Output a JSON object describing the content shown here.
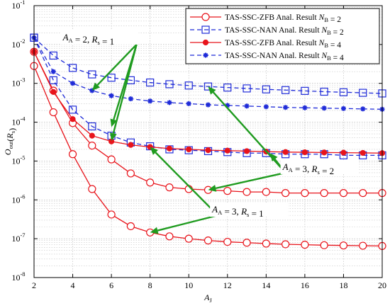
{
  "chart_data": {
    "type": "line",
    "xlabel": "A_J",
    "ylabel": "O_out(R_s)",
    "xlim": [
      2,
      20
    ],
    "ylim": [
      1e-08,
      0.1
    ],
    "yscale": "log",
    "grid": true,
    "legend_position": "top-right",
    "x_ticks": [
      "2",
      "4",
      "6",
      "8",
      "10",
      "12",
      "14",
      "16",
      "18",
      "20"
    ],
    "y_ticks": [
      {
        "base": "10",
        "exp": "-8",
        "value": 1e-08
      },
      {
        "base": "10",
        "exp": "-7",
        "value": 1e-07
      },
      {
        "base": "10",
        "exp": "-6",
        "value": 1e-06
      },
      {
        "base": "10",
        "exp": "-5",
        "value": 1e-05
      },
      {
        "base": "10",
        "exp": "-4",
        "value": 0.0001
      },
      {
        "base": "10",
        "exp": "-3",
        "value": 0.001
      },
      {
        "base": "10",
        "exp": "-2",
        "value": 0.01
      },
      {
        "base": "10",
        "exp": "-1",
        "value": 0.1
      }
    ],
    "legend": [
      {
        "label": "TAS-SSC-ZFB Anal. Result N_B = 2",
        "color": "#e8141b",
        "dash": "solid",
        "marker": "circle-open"
      },
      {
        "label": "TAS-SSC-NAN Anal. Result N_B = 2",
        "color": "#1f2bd8",
        "dash": "dashed",
        "marker": "square-open"
      },
      {
        "label": "TAS-SSC-ZFB Anal. Result N_B = 4",
        "color": "#e8141b",
        "dash": "solid",
        "marker": "dot-filled"
      },
      {
        "label": "TAS-SSC-NAN Anal. Result N_B = 4",
        "color": "#1f2bd8",
        "dash": "dashed",
        "marker": "star-filled"
      }
    ],
    "series": [
      {
        "legend": 0,
        "x": [
          2,
          3,
          4,
          5,
          6,
          7,
          8,
          9,
          10,
          11,
          12,
          13,
          14,
          15,
          16,
          17,
          18,
          19,
          20
        ],
        "values": [
          0.0028,
          0.00018,
          1.5e-05,
          1.9e-06,
          4.2e-07,
          2.1e-07,
          1.45e-07,
          1.15e-07,
          1e-07,
          9e-08,
          8.3e-08,
          7.9e-08,
          7.5e-08,
          7.2e-08,
          7e-08,
          6.8e-08,
          6.7e-08,
          6.6e-08,
          6.5e-08
        ]
      },
      {
        "legend": 0,
        "x": [
          2,
          3,
          4,
          5,
          6,
          7,
          8,
          9,
          10,
          11,
          12,
          13,
          14,
          15,
          16,
          17,
          18,
          19,
          20
        ],
        "values": [
          0.0065,
          0.00065,
          9.5e-05,
          2.5e-05,
          1.1e-05,
          4.8e-06,
          2.8e-06,
          2.1e-06,
          1.9e-06,
          1.8e-06,
          1.7e-06,
          1.6e-06,
          1.6e-06,
          1.5e-06,
          1.5e-06,
          1.5e-06,
          1.5e-06,
          1.5e-06,
          1.5e-06
        ]
      },
      {
        "legend": 1,
        "x": [
          2,
          3,
          4,
          5,
          6,
          7,
          8,
          9,
          10,
          11,
          12,
          13,
          14,
          15,
          16,
          17,
          18,
          19,
          20
        ],
        "values": [
          0.015,
          0.0012,
          0.00021,
          7.8e-05,
          4.5e-05,
          3e-05,
          2.4e-05,
          2e-05,
          1.9e-05,
          1.8e-05,
          1.7e-05,
          1.6e-05,
          1.6e-05,
          1.5e-05,
          1.5e-05,
          1.5e-05,
          1.4e-05,
          1.4e-05,
          1.4e-05
        ]
      },
      {
        "legend": 1,
        "x": [
          2,
          3,
          4,
          5,
          6,
          7,
          8,
          9,
          10,
          11,
          12,
          13,
          14,
          15,
          16,
          17,
          18,
          19,
          20
        ],
        "values": [
          0.015,
          0.0052,
          0.0025,
          0.0017,
          0.0014,
          0.0012,
          0.00105,
          0.00095,
          0.00088,
          0.00083,
          0.00078,
          0.00074,
          0.0007,
          0.00067,
          0.00064,
          0.00061,
          0.00059,
          0.00057,
          0.00055
        ]
      },
      {
        "legend": 2,
        "x": [
          2,
          3,
          4,
          5,
          6,
          7,
          8,
          9,
          10,
          11,
          12,
          13,
          14,
          15,
          16,
          17,
          18,
          19,
          20
        ],
        "values": [
          0.0065,
          0.0006,
          0.00012,
          4.5e-05,
          3.2e-05,
          2.6e-05,
          2.3e-05,
          2.1e-05,
          2e-05,
          1.9e-05,
          1.85e-05,
          1.8e-05,
          1.75e-05,
          1.7e-05,
          1.68e-05,
          1.66e-05,
          1.64e-05,
          1.62e-05,
          1.6e-05
        ]
      },
      {
        "legend": 3,
        "x": [
          2,
          3,
          4,
          5,
          6,
          7,
          8,
          9,
          10,
          11,
          12,
          13,
          14,
          15,
          16,
          17,
          18,
          19,
          20
        ],
        "values": [
          0.015,
          0.002,
          0.001,
          0.00065,
          0.00048,
          0.0004,
          0.00035,
          0.00032,
          0.0003,
          0.00028,
          0.00027,
          0.00026,
          0.00025,
          0.00024,
          0.000235,
          0.00023,
          0.000225,
          0.00022,
          0.000215
        ]
      }
    ],
    "annotations": [
      {
        "text": "A_A = 2, R_s = 1",
        "at": [
          7.3,
          0.01
        ],
        "arrows_to": [
          [
            5.0,
            0.00065
          ],
          [
            6.0,
            3.3e-05
          ],
          [
            6.0,
            7.5e-05
          ]
        ]
      },
      {
        "text": "A_A = 3, R_s = 2",
        "at": [
          15.0,
          5e-06
        ],
        "arrows_to": [
          [
            11.0,
            0.00083
          ],
          [
            11.0,
            1.8e-06
          ],
          [
            14.2,
            1.6e-05
          ]
        ]
      },
      {
        "text": "A_A = 3, R_s = 1",
        "at": [
          11.5,
          4e-07
        ],
        "arrows_to": [
          [
            8.0,
            1.45e-07
          ],
          [
            8.0,
            2.3e-05
          ]
        ]
      }
    ]
  }
}
